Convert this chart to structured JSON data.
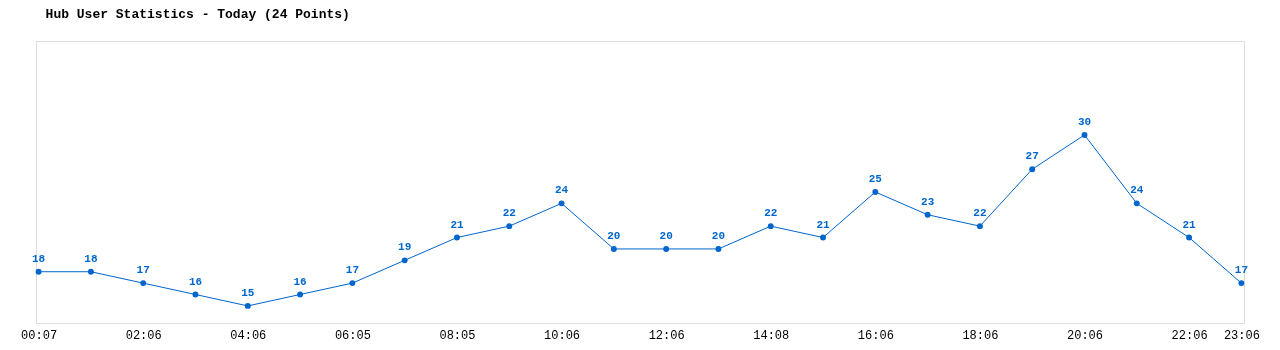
{
  "chart_data": {
    "type": "line",
    "title": "Hub User Statistics - Today (24 Points)",
    "categories": [
      "00:07",
      null,
      "02:06",
      null,
      "04:06",
      null,
      "06:05",
      null,
      "08:05",
      null,
      "10:06",
      null,
      "12:06",
      null,
      "14:08",
      null,
      "16:06",
      null,
      "18:06",
      null,
      "20:06",
      null,
      "22:06",
      "23:06"
    ],
    "series": [
      {
        "color": "#0066cc",
        "values": [
          18,
          18,
          17,
          16,
          15,
          16,
          17,
          19,
          21,
          22,
          24,
          20,
          20,
          20,
          22,
          21,
          25,
          23,
          22,
          27,
          30,
          24,
          21,
          17
        ]
      }
    ],
    "data_labels": true,
    "marker": "circle"
  }
}
